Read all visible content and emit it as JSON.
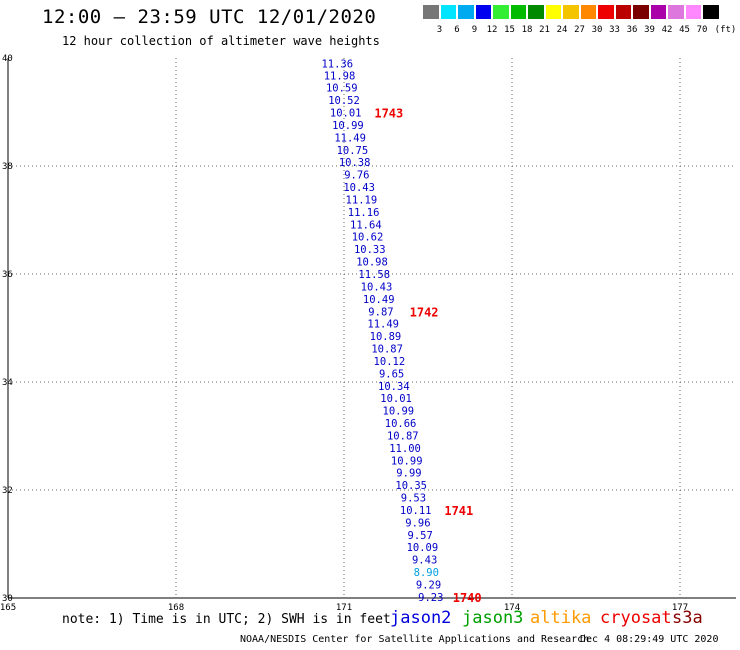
{
  "header": {
    "title": "12:00 – 23:59 UTC 12/01/2020",
    "subtitle": "12 hour collection of altimeter wave heights"
  },
  "color_scale": {
    "colors": [
      "#777777",
      "#00e5ff",
      "#00aaf0",
      "#0000f0",
      "#33ee33",
      "#00bb00",
      "#008a00",
      "#ffff00",
      "#f5c400",
      "#ff8800",
      "#ee0000",
      "#bb0000",
      "#7a0000",
      "#aa00aa",
      "#dd77dd",
      "#ff88ff",
      "#000000"
    ],
    "labels": [
      "3",
      "6",
      "9",
      "12",
      "15",
      "18",
      "21",
      "24",
      "27",
      "30",
      "33",
      "36",
      "39",
      "42",
      "45",
      "70",
      "(ft)"
    ]
  },
  "chart_data": {
    "type": "scatter",
    "xlim": [
      165,
      178
    ],
    "ylim": [
      30,
      40
    ],
    "x_ticks": [
      "165",
      "168",
      "171",
      "174",
      "177"
    ],
    "y_ticks": [
      "40",
      "38",
      "36",
      "34",
      "32",
      "30"
    ],
    "grid": true,
    "units": "ft",
    "swh_points": [
      {
        "lon": 170.88,
        "lat": 39.9,
        "value": "11.36",
        "color": "#0000c8"
      },
      {
        "lon": 170.92,
        "lat": 39.68,
        "value": "11.98",
        "color": "#0000c8"
      },
      {
        "lon": 170.96,
        "lat": 39.45,
        "value": "10.59",
        "color": "#0000c8"
      },
      {
        "lon": 171.0,
        "lat": 39.22,
        "value": "10.52",
        "color": "#0000c8"
      },
      {
        "lon": 171.03,
        "lat": 38.99,
        "value": "10.01",
        "color": "#0000c8"
      },
      {
        "lon": 171.07,
        "lat": 38.76,
        "value": "10.99",
        "color": "#0000c8"
      },
      {
        "lon": 171.11,
        "lat": 38.53,
        "value": "11.49",
        "color": "#0000c8"
      },
      {
        "lon": 171.15,
        "lat": 38.3,
        "value": "10.75",
        "color": "#0000c8"
      },
      {
        "lon": 171.19,
        "lat": 38.07,
        "value": "10.38",
        "color": "#0000c8"
      },
      {
        "lon": 171.23,
        "lat": 37.84,
        "value": "9.76",
        "color": "#0000c8"
      },
      {
        "lon": 171.27,
        "lat": 37.61,
        "value": "10.43",
        "color": "#0000c8"
      },
      {
        "lon": 171.31,
        "lat": 37.38,
        "value": "11.19",
        "color": "#0000c8"
      },
      {
        "lon": 171.35,
        "lat": 37.15,
        "value": "11.16",
        "color": "#0000c8"
      },
      {
        "lon": 171.39,
        "lat": 36.92,
        "value": "11.64",
        "color": "#0000c8"
      },
      {
        "lon": 171.42,
        "lat": 36.69,
        "value": "10.62",
        "color": "#0000c8"
      },
      {
        "lon": 171.46,
        "lat": 36.46,
        "value": "10.33",
        "color": "#0000c8"
      },
      {
        "lon": 171.5,
        "lat": 36.23,
        "value": "10.98",
        "color": "#0000c8"
      },
      {
        "lon": 171.54,
        "lat": 36.0,
        "value": "11.58",
        "color": "#0000c8"
      },
      {
        "lon": 171.58,
        "lat": 35.77,
        "value": "10.43",
        "color": "#0000c8"
      },
      {
        "lon": 171.62,
        "lat": 35.54,
        "value": "10.49",
        "color": "#0000c8"
      },
      {
        "lon": 171.66,
        "lat": 35.31,
        "value": "9.87",
        "color": "#0000c8"
      },
      {
        "lon": 171.7,
        "lat": 35.08,
        "value": "11.49",
        "color": "#0000c8"
      },
      {
        "lon": 171.74,
        "lat": 34.85,
        "value": "10.89",
        "color": "#0000c8"
      },
      {
        "lon": 171.77,
        "lat": 34.62,
        "value": "10.87",
        "color": "#0000c8"
      },
      {
        "lon": 171.81,
        "lat": 34.39,
        "value": "10.12",
        "color": "#0000c8"
      },
      {
        "lon": 171.85,
        "lat": 34.16,
        "value": "9.65",
        "color": "#0000c8"
      },
      {
        "lon": 171.89,
        "lat": 33.93,
        "value": "10.34",
        "color": "#0000c8"
      },
      {
        "lon": 171.93,
        "lat": 33.7,
        "value": "10.01",
        "color": "#0000c8"
      },
      {
        "lon": 171.97,
        "lat": 33.47,
        "value": "10.99",
        "color": "#0000c8"
      },
      {
        "lon": 172.01,
        "lat": 33.24,
        "value": "10.66",
        "color": "#0000c8"
      },
      {
        "lon": 172.05,
        "lat": 33.01,
        "value": "10.87",
        "color": "#0000c8"
      },
      {
        "lon": 172.09,
        "lat": 32.78,
        "value": "11.00",
        "color": "#0000c8"
      },
      {
        "lon": 172.12,
        "lat": 32.55,
        "value": "10.99",
        "color": "#0000c8"
      },
      {
        "lon": 172.16,
        "lat": 32.32,
        "value": "9.99",
        "color": "#0000c8"
      },
      {
        "lon": 172.2,
        "lat": 32.09,
        "value": "10.35",
        "color": "#0000c8"
      },
      {
        "lon": 172.24,
        "lat": 31.86,
        "value": "9.53",
        "color": "#0000c8"
      },
      {
        "lon": 172.28,
        "lat": 31.63,
        "value": "10.11",
        "color": "#0000c8"
      },
      {
        "lon": 172.32,
        "lat": 31.4,
        "value": "9.96",
        "color": "#0000c8"
      },
      {
        "lon": 172.36,
        "lat": 31.17,
        "value": "9.57",
        "color": "#0000c8"
      },
      {
        "lon": 172.4,
        "lat": 30.94,
        "value": "10.09",
        "color": "#0000c8"
      },
      {
        "lon": 172.44,
        "lat": 30.71,
        "value": "9.43",
        "color": "#0000c8"
      },
      {
        "lon": 172.47,
        "lat": 30.48,
        "value": "8.90",
        "color": "#00a0e0"
      },
      {
        "lon": 172.51,
        "lat": 30.25,
        "value": "9.29",
        "color": "#0000c8"
      },
      {
        "lon": 172.55,
        "lat": 30.02,
        "value": "9.23",
        "color": "#0000c8"
      }
    ],
    "time_labels": [
      {
        "lon": 171.8,
        "lat": 38.99,
        "value": "1743"
      },
      {
        "lon": 172.43,
        "lat": 35.31,
        "value": "1742"
      },
      {
        "lon": 173.05,
        "lat": 31.63,
        "value": "1741"
      },
      {
        "lon": 173.2,
        "lat": 30.02,
        "value": "1740"
      }
    ],
    "time_label_color": "#ee0000"
  },
  "footer": {
    "note": "note: 1) Time is in UTC; 2) SWH is in feet",
    "satellites": [
      {
        "name": "jason2",
        "color": "#0000dd"
      },
      {
        "name": "jason3",
        "color": "#00a000"
      },
      {
        "name": "altika",
        "color": "#ff9900"
      },
      {
        "name": "cryosat",
        "color": "#ee0000"
      },
      {
        "name": "s3a",
        "color": "#880000"
      }
    ],
    "credit": "NOAA/NESDIS Center for Satellite Applications and Research",
    "timestamp": "Dec  4 08:29:49 UTC 2020"
  }
}
